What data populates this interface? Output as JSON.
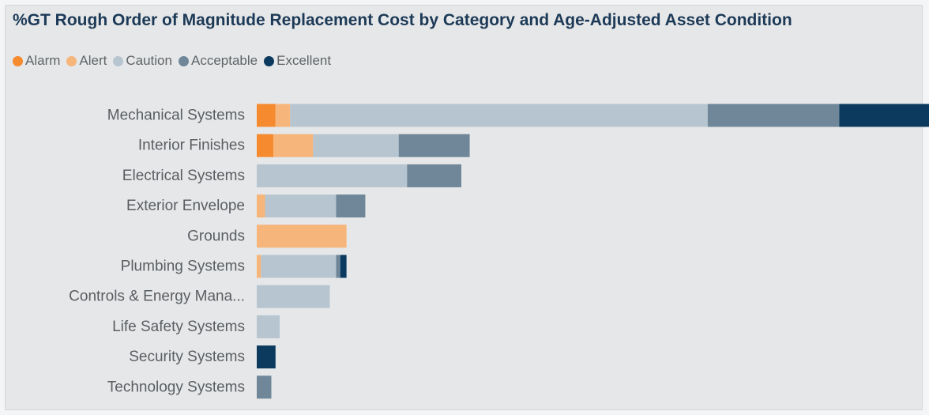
{
  "chart_data": {
    "type": "bar",
    "orientation": "horizontal",
    "stacked": true,
    "title": "%GT Rough Order of Magnitude Replacement Cost by Category and Age-Adjusted Asset Condition",
    "legend_position": "top-left",
    "grid": false,
    "xlim": [
      0,
      35
    ],
    "categories": [
      "Mechanical Systems",
      "Interior Finishes",
      "Electrical Systems",
      "Exterior Envelope",
      "Grounds",
      "Plumbing Systems",
      "Controls & Energy Mana...",
      "Life Safety Systems",
      "Security Systems",
      "Technology Systems"
    ],
    "series": [
      {
        "name": "Alarm",
        "color": "#f58a2e",
        "values": [
          0.9,
          0.8,
          0,
          0,
          0,
          0,
          0,
          0,
          0,
          0
        ]
      },
      {
        "name": "Alert",
        "color": "#f6b57a",
        "values": [
          0.7,
          1.9,
          0,
          0.4,
          4.3,
          0.2,
          0,
          0,
          0,
          0
        ]
      },
      {
        "name": "Caution",
        "color": "#b7c5d0",
        "values": [
          20.0,
          4.1,
          7.2,
          3.4,
          0,
          3.6,
          3.5,
          1.1,
          0,
          0
        ]
      },
      {
        "name": "Acceptable",
        "color": "#6f8799",
        "values": [
          6.3,
          3.4,
          2.6,
          1.4,
          0,
          0.2,
          0,
          0,
          0,
          0.7
        ]
      },
      {
        "name": "Excellent",
        "color": "#0b3a5e",
        "values": [
          6.6,
          0,
          0,
          0,
          0,
          0.3,
          0,
          0,
          0.9,
          0
        ]
      }
    ]
  }
}
